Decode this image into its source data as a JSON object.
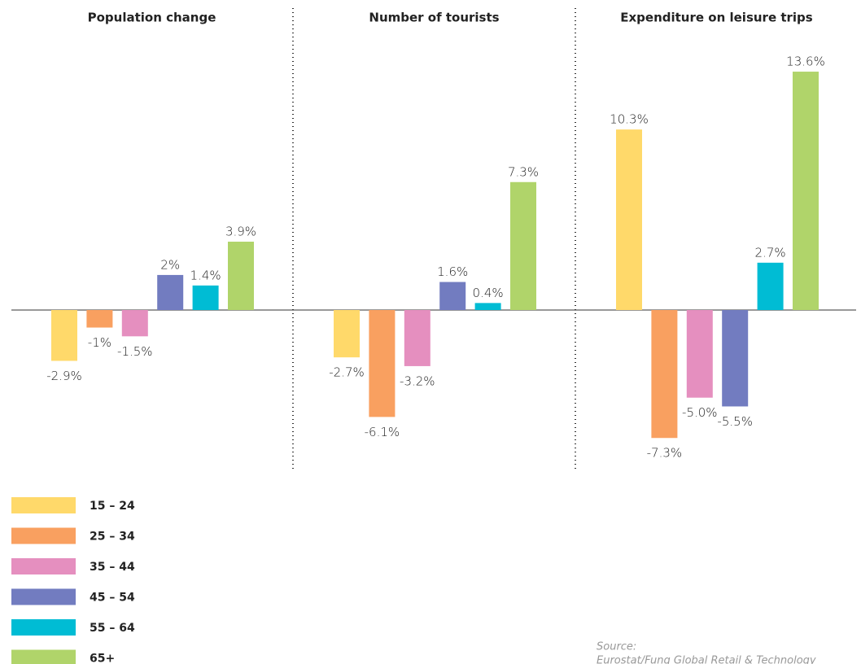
{
  "chart_data": [
    {
      "type": "bar",
      "title": "Population change",
      "values": [
        -2.9,
        -1,
        -1.5,
        2,
        1.4,
        3.9
      ],
      "value_labels": [
        "-2.9%",
        "-1%",
        "-1.5%",
        "2%",
        "1.4%",
        "3.9%"
      ]
    },
    {
      "type": "bar",
      "title": "Number of tourists",
      "values": [
        -2.7,
        -6.1,
        -3.2,
        1.6,
        0.4,
        7.3
      ],
      "value_labels": [
        "-2.7%",
        "-6.1%",
        "-3.2%",
        "1.6%",
        "0.4%",
        "7.3%"
      ]
    },
    {
      "type": "bar",
      "title": "Expenditure on leisure trips",
      "values": [
        10.3,
        -7.3,
        -5.0,
        -5.5,
        2.7,
        13.6
      ],
      "value_labels": [
        "10.3%",
        "-7.3%",
        "-5.0%",
        "-5.5%",
        "2.7%",
        "13.6%"
      ]
    }
  ],
  "legend": {
    "items": [
      {
        "name": "15 – 24",
        "color": "#ffd96a"
      },
      {
        "name": "25 – 34",
        "color": "#f9a060"
      },
      {
        "name": "35 – 44",
        "color": "#e58fbf"
      },
      {
        "name": "45 – 54",
        "color": "#727cc0"
      },
      {
        "name": "55 – 64",
        "color": "#00bcd4"
      },
      {
        "name": "65+",
        "color": "#b0d46a"
      }
    ]
  },
  "source": {
    "label": "Source:",
    "text": "Eurostat/Fung Global Retail & Technology"
  }
}
